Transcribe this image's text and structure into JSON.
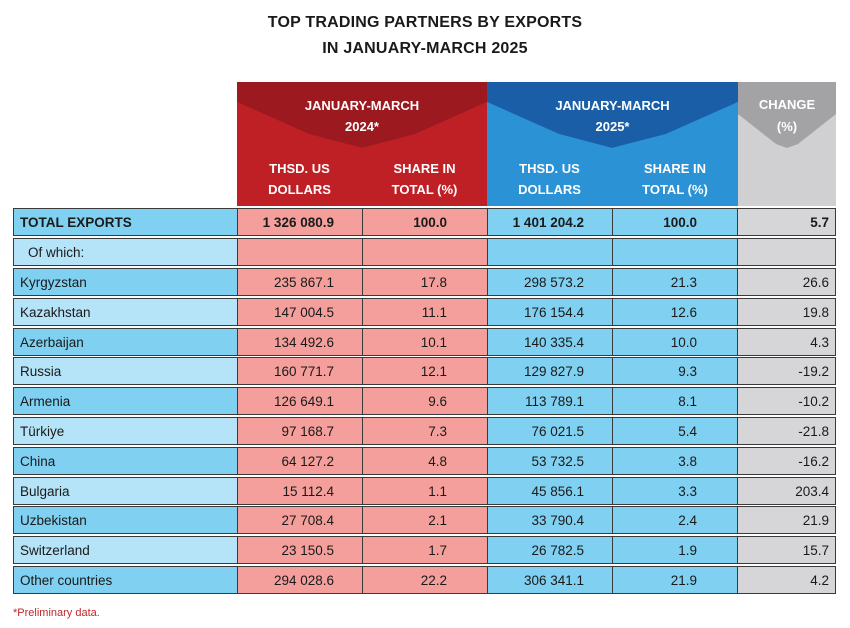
{
  "title": {
    "line1": "TOP TRADING PARTNERS BY EXPORTS",
    "line2": "IN JANUARY-MARCH 2025"
  },
  "header": {
    "period_2024": {
      "line1": "JANUARY-MARCH",
      "line2": "2024*"
    },
    "period_2025": {
      "line1": "JANUARY-MARCH",
      "line2": "2025*"
    },
    "value_col": {
      "line1": "THSD. US",
      "line2": "DOLLARS"
    },
    "share_col": {
      "line1": "SHARE IN",
      "line2": "TOTAL (%)"
    },
    "change": {
      "line1": "CHANGE",
      "line2": "(%)"
    }
  },
  "colors": {
    "red_header": "#bf2026",
    "blue_header": "#2b92d6",
    "grey_header": "#d0d0d2",
    "red_cells": "#f49f9b",
    "blue_cells": "#7fd0f1",
    "grey_cells": "#d6d6d8"
  },
  "total": {
    "name": "TOTAL EXPORTS",
    "v2024": "1 326 080.9",
    "s2024": "100.0",
    "v2025": "1 401 204.2",
    "s2025": "100.0",
    "change": "5.7"
  },
  "of_which": "Of which:",
  "rows": [
    {
      "name": "Kyrgyzstan",
      "v2024": "235 867.1",
      "s2024": "17.8",
      "v2025": "298 573.2",
      "s2025": "21.3",
      "change": "26.6"
    },
    {
      "name": "Kazakhstan",
      "v2024": "147 004.5",
      "s2024": "11.1",
      "v2025": "176 154.4",
      "s2025": "12.6",
      "change": "19.8"
    },
    {
      "name": "Azerbaijan",
      "v2024": "134 492.6",
      "s2024": "10.1",
      "v2025": "140 335.4",
      "s2025": "10.0",
      "change": "4.3"
    },
    {
      "name": "Russia",
      "v2024": "160 771.7",
      "s2024": "12.1",
      "v2025": "129 827.9",
      "s2025": "9.3",
      "change": "-19.2"
    },
    {
      "name": "Armenia",
      "v2024": "126 649.1",
      "s2024": "9.6",
      "v2025": "113 789.1",
      "s2025": "8.1",
      "change": "-10.2"
    },
    {
      "name": "Türkiye",
      "v2024": "97 168.7",
      "s2024": "7.3",
      "v2025": "76 021.5",
      "s2025": "5.4",
      "change": "-21.8"
    },
    {
      "name": "China",
      "v2024": "64 127.2",
      "s2024": "4.8",
      "v2025": "53 732.5",
      "s2025": "3.8",
      "change": "-16.2"
    },
    {
      "name": "Bulgaria",
      "v2024": "15 112.4",
      "s2024": "1.1",
      "v2025": "45 856.1",
      "s2025": "3.3",
      "change": "203.4"
    },
    {
      "name": "Uzbekistan",
      "v2024": "27 708.4",
      "s2024": "2.1",
      "v2025": "33 790.4",
      "s2025": "2.4",
      "change": "21.9"
    },
    {
      "name": "Switzerland",
      "v2024": "23 150.5",
      "s2024": "1.7",
      "v2025": "26 782.5",
      "s2025": "1.9",
      "change": "15.7"
    },
    {
      "name": "Other countries",
      "v2024": "294 028.6",
      "s2024": "22.2",
      "v2025": "306 341.1",
      "s2025": "21.9",
      "change": "4.2"
    }
  ],
  "footnote": "*Preliminary data."
}
